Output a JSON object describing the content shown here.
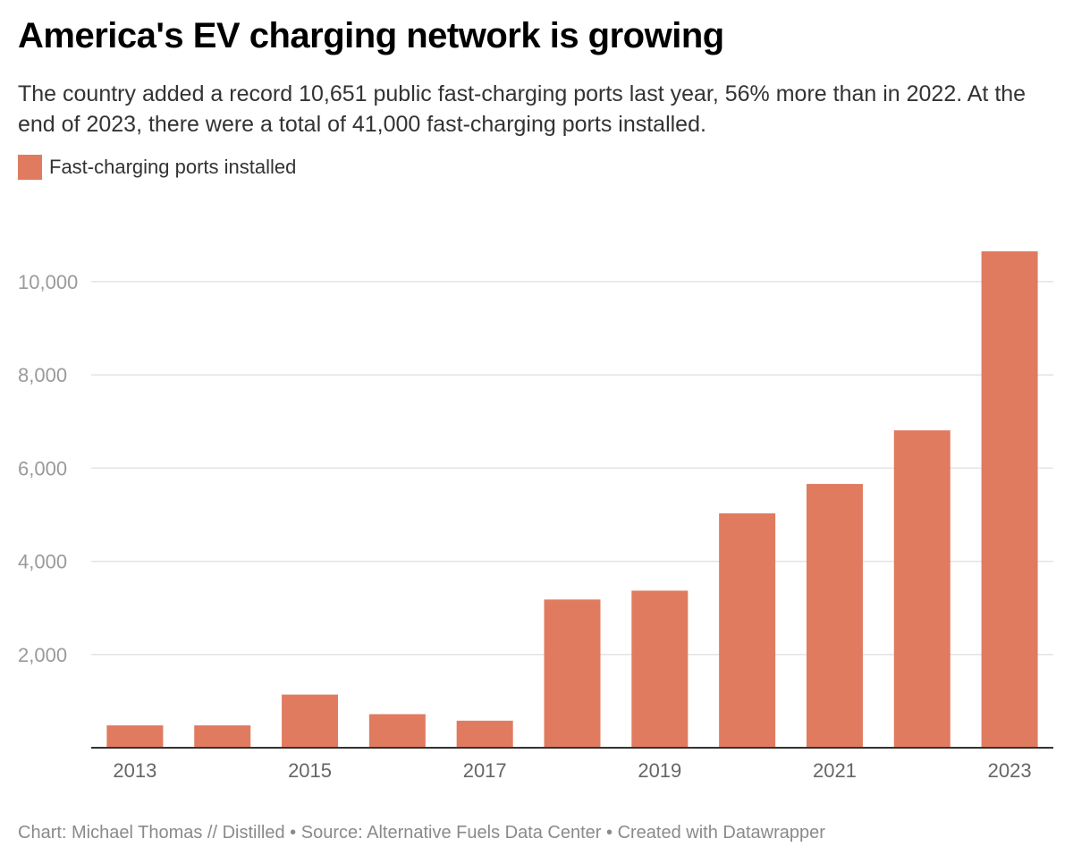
{
  "title": "America's EV charging network is growing",
  "subtitle": "The country added a record 10,651 public fast-charging ports last year, 56% more than in 2022. At the end of 2023, there were a total of 41,000 fast-charging ports installed.",
  "footer": "Chart: Michael Thomas // Distilled • Source: Alternative Fuels Data Center • Created with Datawrapper",
  "colors": {
    "bar": "#e07b60",
    "grid": "#e3e3e3",
    "axis": "#333333"
  },
  "chart_data": {
    "type": "bar",
    "title": "America's EV charging network is growing",
    "xlabel": "",
    "ylabel": "",
    "legend": [
      {
        "name": "Fast-charging ports installed",
        "color": "#e07b60",
        "placement": "top-left"
      }
    ],
    "categories": [
      "2013",
      "2014",
      "2015",
      "2016",
      "2017",
      "2018",
      "2019",
      "2020",
      "2021",
      "2022",
      "2023"
    ],
    "series": [
      {
        "name": "Fast-charging ports installed",
        "values": [
          480,
          480,
          1140,
          720,
          580,
          3180,
          3370,
          5030,
          5660,
          6810,
          10651
        ]
      }
    ],
    "x_tick_labels": [
      "2013",
      "2015",
      "2017",
      "2019",
      "2021",
      "2023"
    ],
    "y_ticks": [
      2000,
      4000,
      6000,
      8000,
      10000
    ],
    "y_tick_labels": [
      "2,000",
      "4,000",
      "6,000",
      "8,000",
      "10,000"
    ],
    "ylim": [
      0,
      10651
    ],
    "grid": true
  }
}
